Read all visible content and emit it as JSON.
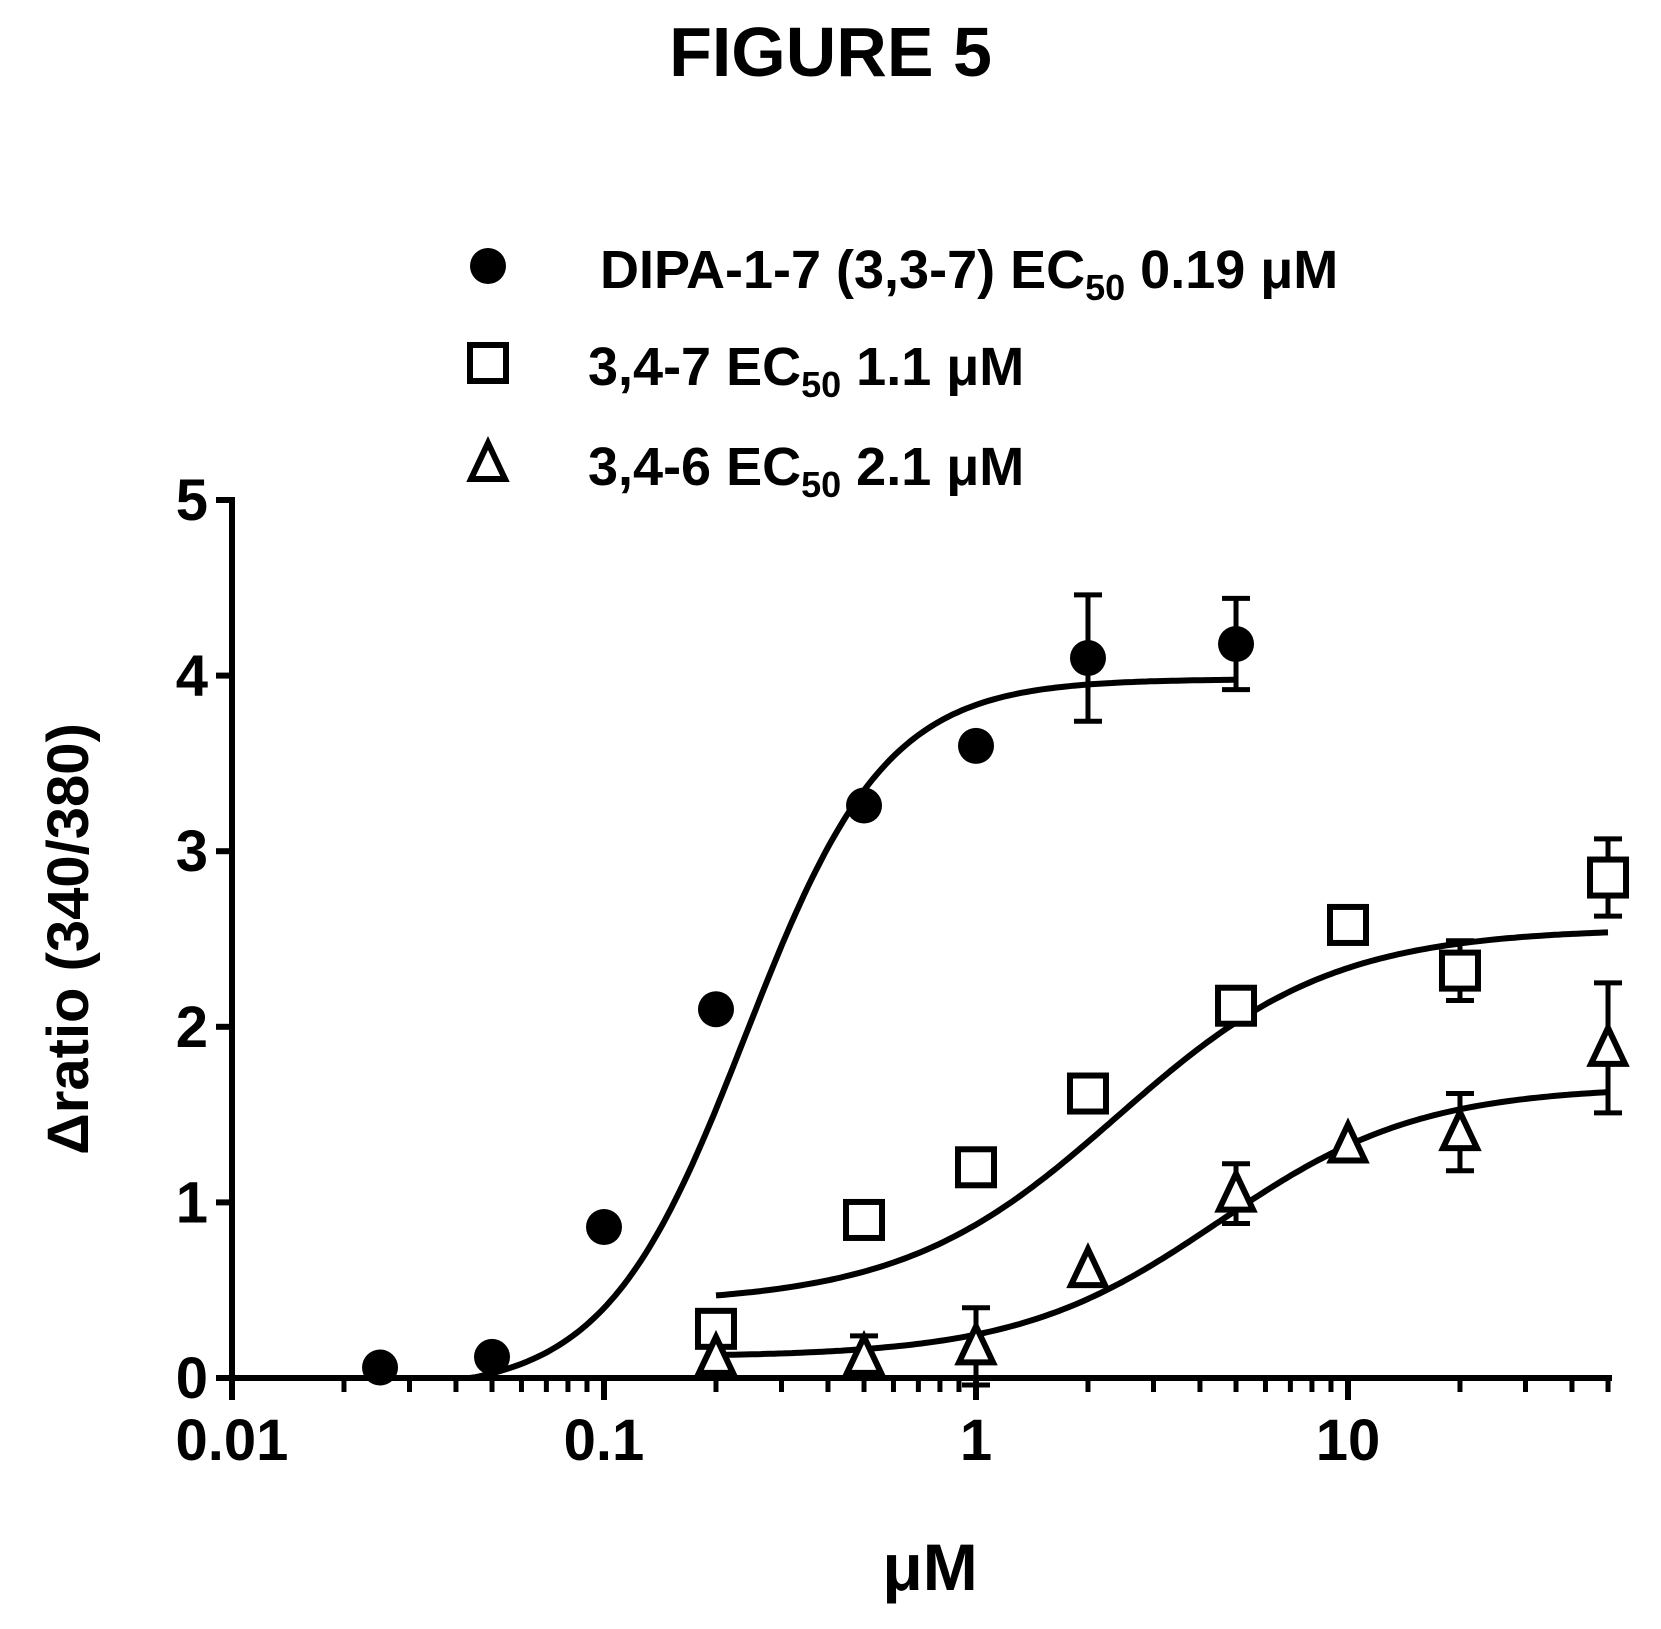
{
  "figure_label": "FIGURE 5",
  "chart_data": {
    "type": "scatter",
    "x_scale": "log",
    "xlim": [
      0.01,
      50
    ],
    "ylim": [
      0,
      5
    ],
    "xlabel": "μM",
    "ylabel": "Δratio (340/380)",
    "x_ticks": [
      0.01,
      0.1,
      1,
      10
    ],
    "x_tick_labels": [
      "0.01",
      "0.1",
      "1",
      "10"
    ],
    "y_ticks": [
      0,
      1,
      2,
      3,
      4,
      5
    ],
    "y_tick_labels": [
      "0",
      "1",
      "2",
      "3",
      "4",
      "5"
    ],
    "grid": false,
    "legend_position": "top",
    "series": [
      {
        "name": "DIPA-1-7 (3,3-7) EC50 0.19 μM",
        "legend_parts": {
          "prefix": "DIPA-1-7 (3,3-7) EC",
          "sub": "50",
          "suffix": " 0.19 μM"
        },
        "marker": "filled-circle",
        "x": [
          0.025,
          0.05,
          0.1,
          0.2,
          0.5,
          1,
          2,
          5
        ],
        "y": [
          0.06,
          0.12,
          0.86,
          2.1,
          3.26,
          3.6,
          4.1,
          4.18
        ],
        "error": [
          0,
          0,
          0,
          0,
          0,
          0,
          0.36,
          0.26
        ],
        "fit": {
          "bottom": -0.08,
          "top": 3.98,
          "ec50": 0.24,
          "hill": 2.3,
          "x_range": [
            0.025,
            5
          ]
        }
      },
      {
        "name": "3,4-7 EC50 1.1 μM",
        "legend_parts": {
          "prefix": "3,4-7 EC",
          "sub": "50",
          "suffix": " 1.1 μM"
        },
        "marker": "open-square",
        "x": [
          0.2,
          0.5,
          1,
          2,
          5,
          10,
          20,
          50
        ],
        "y": [
          0.28,
          0.9,
          1.2,
          1.62,
          2.12,
          2.58,
          2.32,
          2.85
        ],
        "error": [
          0,
          0,
          0,
          0,
          0,
          0,
          0.17,
          0.22
        ],
        "fit": {
          "bottom": 0.42,
          "top": 2.56,
          "ec50": 2.4,
          "hill": 1.5,
          "x_range": [
            0.2,
            50
          ]
        }
      },
      {
        "name": "3,4-6 EC50 2.1 μM",
        "legend_parts": {
          "prefix": "3,4-6 EC",
          "sub": "50",
          "suffix": " 2.1 μM"
        },
        "marker": "open-triangle",
        "x": [
          0.2,
          0.5,
          1,
          2,
          5,
          10,
          20,
          50
        ],
        "y": [
          0.12,
          0.12,
          0.18,
          0.62,
          1.05,
          1.33,
          1.4,
          1.88
        ],
        "error": [
          0,
          0.12,
          0.22,
          0,
          0.17,
          0,
          0.22,
          0.37
        ],
        "fit": {
          "bottom": 0.12,
          "top": 1.66,
          "ec50": 4.5,
          "hill": 1.6,
          "x_range": [
            0.2,
            50
          ]
        }
      }
    ]
  }
}
